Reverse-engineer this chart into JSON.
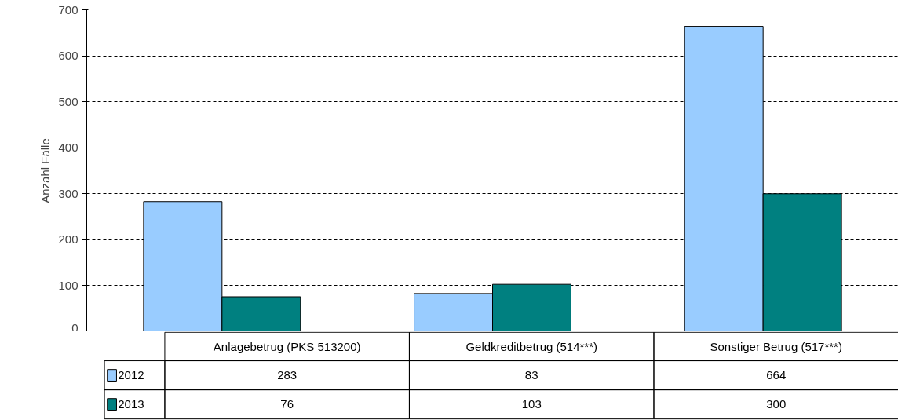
{
  "chart_data": {
    "type": "bar",
    "ylabel": "Anzahl Fälle",
    "categories": [
      "Anlagebetrug (PKS 513200)",
      "Geldkreditbetrug (514***)",
      "Sonstiger Betrug (517***)"
    ],
    "series": [
      {
        "name": "2012",
        "color": "#99ccff",
        "values": [
          283,
          83,
          664
        ]
      },
      {
        "name": "2013",
        "color": "#008080",
        "values": [
          76,
          103,
          300
        ]
      }
    ],
    "ylim": [
      0,
      700
    ],
    "yticks": [
      0,
      100,
      200,
      300,
      400,
      500,
      600,
      700
    ],
    "grid": "y",
    "legend": "bottom left",
    "data_labels": true
  }
}
